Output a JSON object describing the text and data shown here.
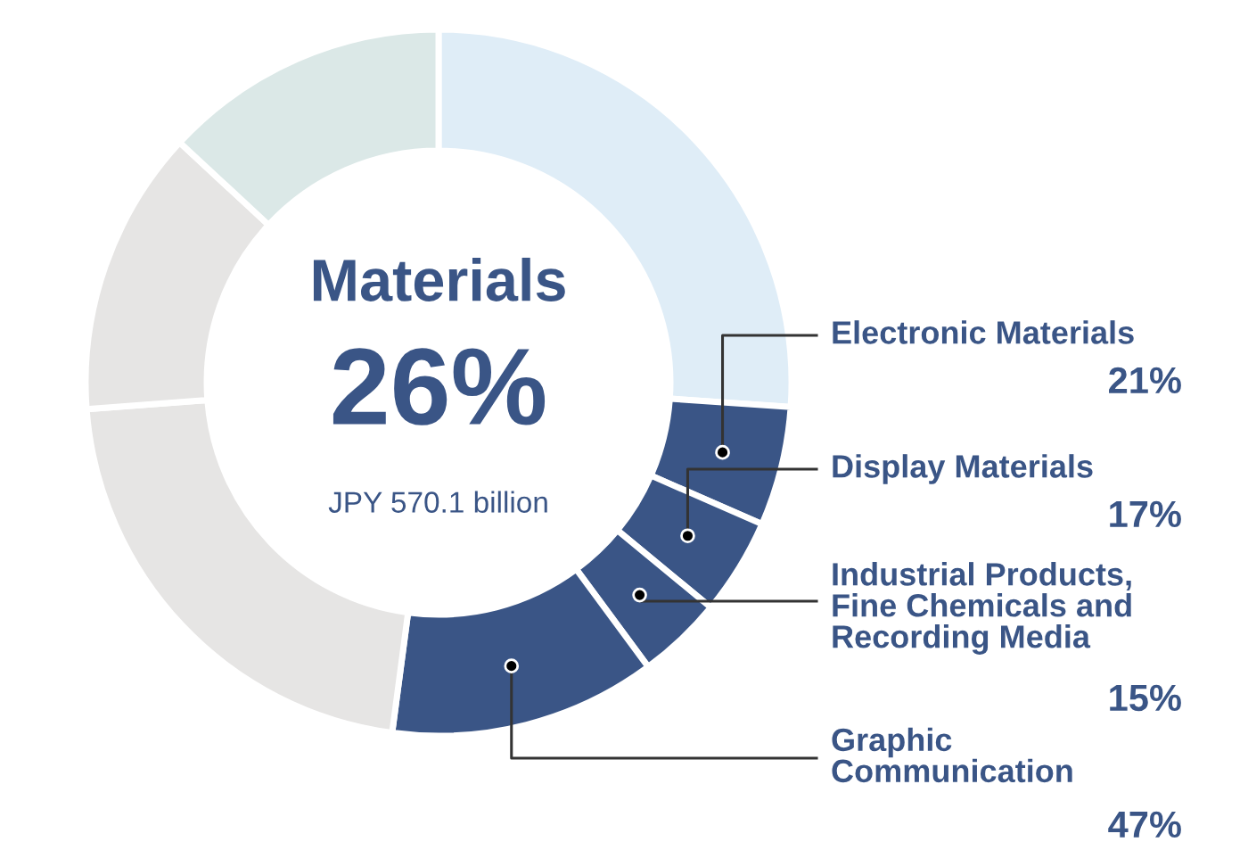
{
  "chart_data": {
    "type": "donut",
    "categories": [
      null,
      "Electronic Materials",
      "Display Materials",
      "Industrial Products,\nFine Chemicals and\nRecording Media",
      "Graphic\nCommunication",
      null,
      null,
      null
    ],
    "values": [
      26.1,
      5.46,
      4.42,
      3.9,
      12.22,
      21.7,
      13.1,
      13.1
    ],
    "colors": [
      "#dfedf7",
      "#3a5586",
      "#3a5586",
      "#3a5586",
      "#3a5586",
      "#e6e5e4",
      "#e6e5e4",
      "#dbe8e7"
    ],
    "annotations": [
      "Materials",
      "26%",
      "JPY 570.1 billion",
      {
        "text": "21%",
        "x": "Electronic Materials"
      },
      {
        "text": "17%",
        "x": "Display Materials"
      },
      {
        "text": "15%",
        "x": "Industrial Products,\nFine Chemicals and\nRecording Media"
      },
      {
        "text": "47%",
        "x": "Graphic\nCommunication"
      }
    ]
  }
}
